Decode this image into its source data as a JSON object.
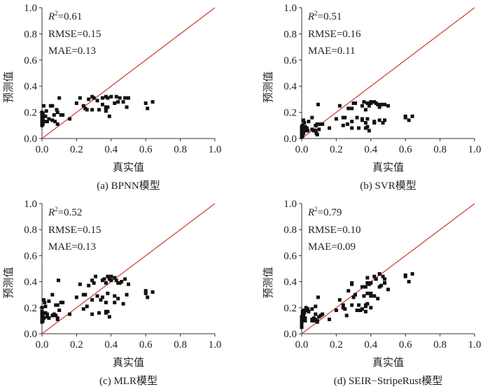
{
  "chart_data": [
    {
      "type": "scatter",
      "caption": "(a) BPNN模型",
      "xlabel": "真实值",
      "ylabel": "预测值",
      "xlim": [
        0,
        1.0
      ],
      "ylim": [
        0,
        1.0
      ],
      "xticks": [
        "0.0",
        "0.2",
        "0.4",
        "0.6",
        "0.8",
        "1.0"
      ],
      "yticks": [
        "0.0",
        "0.2",
        "0.4",
        "0.6",
        "0.8",
        "1.0"
      ],
      "reference_line": "y=x",
      "stats": {
        "r2_label": "R",
        "r2_value": "=0.61",
        "rmse": "RMSE=0.15",
        "mae": "MAE=0.13"
      },
      "points": [
        [
          0.0,
          0.1
        ],
        [
          0.0,
          0.12
        ],
        [
          0.0,
          0.14
        ],
        [
          0.0,
          0.16
        ],
        [
          0.0,
          0.18
        ],
        [
          0.0,
          0.2
        ],
        [
          0.005,
          0.11
        ],
        [
          0.005,
          0.15
        ],
        [
          0.005,
          0.19
        ],
        [
          0.01,
          0.13
        ],
        [
          0.01,
          0.17
        ],
        [
          0.01,
          0.25
        ],
        [
          0.05,
          0.25
        ],
        [
          0.06,
          0.25
        ],
        [
          0.025,
          0.21
        ],
        [
          0.03,
          0.13
        ],
        [
          0.02,
          0.17
        ],
        [
          0.04,
          0.15
        ],
        [
          0.07,
          0.18
        ],
        [
          0.06,
          0.14
        ],
        [
          0.085,
          0.22
        ],
        [
          0.09,
          0.2
        ],
        [
          0.075,
          0.13
        ],
        [
          0.09,
          0.11
        ],
        [
          0.11,
          0.18
        ],
        [
          0.12,
          0.18
        ],
        [
          0.1,
          0.31
        ],
        [
          0.16,
          0.15
        ],
        [
          0.2,
          0.27
        ],
        [
          0.22,
          0.31
        ],
        [
          0.24,
          0.25
        ],
        [
          0.25,
          0.23
        ],
        [
          0.27,
          0.3
        ],
        [
          0.26,
          0.22
        ],
        [
          0.29,
          0.22
        ],
        [
          0.29,
          0.32
        ],
        [
          0.3,
          0.31
        ],
        [
          0.32,
          0.29
        ],
        [
          0.33,
          0.22
        ],
        [
          0.35,
          0.26
        ],
        [
          0.35,
          0.31
        ],
        [
          0.37,
          0.32
        ],
        [
          0.38,
          0.31
        ],
        [
          0.37,
          0.24
        ],
        [
          0.37,
          0.23
        ],
        [
          0.38,
          0.24
        ],
        [
          0.37,
          0.21
        ],
        [
          0.39,
          0.17
        ],
        [
          0.4,
          0.32
        ],
        [
          0.42,
          0.27
        ],
        [
          0.43,
          0.32
        ],
        [
          0.44,
          0.28
        ],
        [
          0.45,
          0.31
        ],
        [
          0.47,
          0.28
        ],
        [
          0.48,
          0.31
        ],
        [
          0.49,
          0.24
        ],
        [
          0.5,
          0.31
        ],
        [
          0.6,
          0.27
        ],
        [
          0.61,
          0.23
        ],
        [
          0.64,
          0.28
        ]
      ]
    },
    {
      "type": "scatter",
      "caption": "(b) SVR模型",
      "xlabel": "真实值",
      "ylabel": "预测值",
      "xlim": [
        0,
        1.0
      ],
      "ylim": [
        0,
        1.0
      ],
      "xticks": [
        "0.0",
        "0.2",
        "0.4",
        "0.6",
        "0.8",
        "1.0"
      ],
      "yticks": [
        "0.0",
        "0.2",
        "0.4",
        "0.6",
        "0.8",
        "1.0"
      ],
      "reference_line": "y=x",
      "stats": {
        "r2_label": "R",
        "r2_value": "=0.51",
        "rmse": "RMSE=0.16",
        "mae": "MAE=0.11"
      },
      "points": [
        [
          0.0,
          0.01
        ],
        [
          0.0,
          0.03
        ],
        [
          0.0,
          0.05
        ],
        [
          0.0,
          0.07
        ],
        [
          0.0,
          0.09
        ],
        [
          0.005,
          0.02
        ],
        [
          0.005,
          0.06
        ],
        [
          0.005,
          0.1
        ],
        [
          0.01,
          0.04
        ],
        [
          0.01,
          0.08
        ],
        [
          0.01,
          0.14
        ],
        [
          0.015,
          0.12
        ],
        [
          0.02,
          0.09
        ],
        [
          0.025,
          0.06
        ],
        [
          0.03,
          0.08
        ],
        [
          0.035,
          0.06
        ],
        [
          0.04,
          0.13
        ],
        [
          0.06,
          0.16
        ],
        [
          0.06,
          0.07
        ],
        [
          0.07,
          0.06
        ],
        [
          0.08,
          0.1
        ],
        [
          0.08,
          0.06
        ],
        [
          0.085,
          0.04
        ],
        [
          0.09,
          0.03
        ],
        [
          0.09,
          0.11
        ],
        [
          0.1,
          0.07
        ],
        [
          0.11,
          0.11
        ],
        [
          0.12,
          0.11
        ],
        [
          0.095,
          0.26
        ],
        [
          0.16,
          0.08
        ],
        [
          0.2,
          0.15
        ],
        [
          0.22,
          0.25
        ],
        [
          0.24,
          0.16
        ],
        [
          0.24,
          0.1
        ],
        [
          0.25,
          0.16
        ],
        [
          0.265,
          0.11
        ],
        [
          0.27,
          0.23
        ],
        [
          0.29,
          0.23
        ],
        [
          0.29,
          0.13
        ],
        [
          0.29,
          0.08
        ],
        [
          0.3,
          0.27
        ],
        [
          0.31,
          0.27
        ],
        [
          0.32,
          0.16
        ],
        [
          0.33,
          0.08
        ],
        [
          0.35,
          0.15
        ],
        [
          0.35,
          0.14
        ],
        [
          0.35,
          0.25
        ],
        [
          0.36,
          0.28
        ],
        [
          0.37,
          0.22
        ],
        [
          0.37,
          0.12
        ],
        [
          0.37,
          0.08
        ],
        [
          0.38,
          0.27
        ],
        [
          0.38,
          0.09
        ],
        [
          0.38,
          0.15
        ],
        [
          0.39,
          0.25
        ],
        [
          0.4,
          0.27
        ],
        [
          0.4,
          0.28
        ],
        [
          0.39,
          0.06
        ],
        [
          0.42,
          0.28
        ],
        [
          0.42,
          0.13
        ],
        [
          0.42,
          0.12
        ],
        [
          0.43,
          0.27
        ],
        [
          0.44,
          0.26
        ],
        [
          0.45,
          0.14
        ],
        [
          0.45,
          0.24
        ],
        [
          0.46,
          0.26
        ],
        [
          0.47,
          0.12
        ],
        [
          0.48,
          0.26
        ],
        [
          0.48,
          0.14
        ],
        [
          0.5,
          0.25
        ],
        [
          0.6,
          0.17
        ],
        [
          0.6,
          0.16
        ],
        [
          0.62,
          0.14
        ],
        [
          0.64,
          0.17
        ]
      ]
    },
    {
      "type": "scatter",
      "caption": "(c) MLR模型",
      "xlabel": "真实值",
      "ylabel": "预测值",
      "xlim": [
        0,
        1.0
      ],
      "ylim": [
        0,
        1.0
      ],
      "xticks": [
        "0.0",
        "0.2",
        "0.4",
        "0.6",
        "0.8",
        "1.0"
      ],
      "yticks": [
        "0.0",
        "0.2",
        "0.4",
        "0.6",
        "0.8",
        "1.0"
      ],
      "reference_line": "y=x",
      "stats": {
        "r2_label": "R",
        "r2_value": "=0.52",
        "rmse": "RMSE=0.15",
        "mae": "MAE=0.13"
      },
      "points": [
        [
          0.0,
          0.09
        ],
        [
          0.0,
          0.11
        ],
        [
          0.0,
          0.13
        ],
        [
          0.0,
          0.15
        ],
        [
          0.0,
          0.17
        ],
        [
          0.0,
          0.2
        ],
        [
          0.005,
          0.1
        ],
        [
          0.005,
          0.14
        ],
        [
          0.01,
          0.12
        ],
        [
          0.01,
          0.26
        ],
        [
          0.015,
          0.24
        ],
        [
          0.02,
          0.21
        ],
        [
          0.02,
          0.16
        ],
        [
          0.03,
          0.15
        ],
        [
          0.03,
          0.13
        ],
        [
          0.04,
          0.12
        ],
        [
          0.04,
          0.25
        ],
        [
          0.06,
          0.3
        ],
        [
          0.06,
          0.14
        ],
        [
          0.07,
          0.15
        ],
        [
          0.08,
          0.14
        ],
        [
          0.08,
          0.22
        ],
        [
          0.09,
          0.22
        ],
        [
          0.09,
          0.12
        ],
        [
          0.09,
          0.11
        ],
        [
          0.1,
          0.18
        ],
        [
          0.11,
          0.24
        ],
        [
          0.12,
          0.24
        ],
        [
          0.095,
          0.41
        ],
        [
          0.16,
          0.15
        ],
        [
          0.2,
          0.28
        ],
        [
          0.22,
          0.38
        ],
        [
          0.24,
          0.3
        ],
        [
          0.24,
          0.19
        ],
        [
          0.25,
          0.3
        ],
        [
          0.26,
          0.21
        ],
        [
          0.27,
          0.37
        ],
        [
          0.29,
          0.41
        ],
        [
          0.29,
          0.26
        ],
        [
          0.29,
          0.15
        ],
        [
          0.3,
          0.39
        ],
        [
          0.31,
          0.44
        ],
        [
          0.32,
          0.29
        ],
        [
          0.33,
          0.16
        ],
        [
          0.34,
          0.26
        ],
        [
          0.35,
          0.41
        ],
        [
          0.35,
          0.28
        ],
        [
          0.36,
          0.42
        ],
        [
          0.37,
          0.39
        ],
        [
          0.37,
          0.24
        ],
        [
          0.37,
          0.17
        ],
        [
          0.37,
          0.16
        ],
        [
          0.38,
          0.44
        ],
        [
          0.38,
          0.31
        ],
        [
          0.38,
          0.17
        ],
        [
          0.39,
          0.42
        ],
        [
          0.4,
          0.44
        ],
        [
          0.4,
          0.41
        ],
        [
          0.39,
          0.13
        ],
        [
          0.42,
          0.43
        ],
        [
          0.42,
          0.29
        ],
        [
          0.42,
          0.24
        ],
        [
          0.43,
          0.41
        ],
        [
          0.44,
          0.39
        ],
        [
          0.44,
          0.27
        ],
        [
          0.45,
          0.39
        ],
        [
          0.46,
          0.4
        ],
        [
          0.47,
          0.23
        ],
        [
          0.48,
          0.42
        ],
        [
          0.49,
          0.3
        ],
        [
          0.5,
          0.38
        ],
        [
          0.6,
          0.33
        ],
        [
          0.6,
          0.31
        ],
        [
          0.61,
          0.28
        ],
        [
          0.64,
          0.32
        ]
      ]
    },
    {
      "type": "scatter",
      "caption": "(d) SEIR−StripeRust模型",
      "xlabel": "真实值",
      "ylabel": "预测值",
      "xlim": [
        0,
        1.0
      ],
      "ylim": [
        0,
        1.0
      ],
      "xticks": [
        "0.0",
        "0.2",
        "0.4",
        "0.6",
        "0.8",
        "1.0"
      ],
      "yticks": [
        "0.0",
        "0.2",
        "0.4",
        "0.6",
        "0.8",
        "1.0"
      ],
      "reference_line": "y=x",
      "stats": {
        "r2_label": "R",
        "r2_value": "=0.79",
        "rmse": "RMSE=0.10",
        "mae": "MAE=0.09"
      },
      "points": [
        [
          0.0,
          0.05
        ],
        [
          0.0,
          0.07
        ],
        [
          0.0,
          0.09
        ],
        [
          0.0,
          0.11
        ],
        [
          0.0,
          0.13
        ],
        [
          0.005,
          0.15
        ],
        [
          0.005,
          0.17
        ],
        [
          0.01,
          0.18
        ],
        [
          0.01,
          0.14
        ],
        [
          0.015,
          0.16
        ],
        [
          0.02,
          0.12
        ],
        [
          0.02,
          0.1
        ],
        [
          0.025,
          0.2
        ],
        [
          0.03,
          0.18
        ],
        [
          0.035,
          0.19
        ],
        [
          0.04,
          0.17
        ],
        [
          0.06,
          0.19
        ],
        [
          0.06,
          0.11
        ],
        [
          0.06,
          0.1
        ],
        [
          0.07,
          0.12
        ],
        [
          0.07,
          0.1
        ],
        [
          0.08,
          0.11
        ],
        [
          0.08,
          0.21
        ],
        [
          0.08,
          0.15
        ],
        [
          0.09,
          0.1
        ],
        [
          0.09,
          0.09
        ],
        [
          0.1,
          0.13
        ],
        [
          0.11,
          0.14
        ],
        [
          0.12,
          0.15
        ],
        [
          0.095,
          0.28
        ],
        [
          0.16,
          0.11
        ],
        [
          0.2,
          0.18
        ],
        [
          0.22,
          0.26
        ],
        [
          0.24,
          0.22
        ],
        [
          0.24,
          0.2
        ],
        [
          0.25,
          0.19
        ],
        [
          0.26,
          0.14
        ],
        [
          0.27,
          0.33
        ],
        [
          0.29,
          0.39
        ],
        [
          0.29,
          0.38
        ],
        [
          0.29,
          0.22
        ],
        [
          0.3,
          0.28
        ],
        [
          0.31,
          0.3
        ],
        [
          0.32,
          0.18
        ],
        [
          0.33,
          0.22
        ],
        [
          0.34,
          0.18
        ],
        [
          0.35,
          0.19
        ],
        [
          0.35,
          0.36
        ],
        [
          0.36,
          0.29
        ],
        [
          0.37,
          0.36
        ],
        [
          0.37,
          0.21
        ],
        [
          0.37,
          0.22
        ],
        [
          0.37,
          0.17
        ],
        [
          0.38,
          0.43
        ],
        [
          0.38,
          0.39
        ],
        [
          0.38,
          0.31
        ],
        [
          0.38,
          0.23
        ],
        [
          0.39,
          0.38
        ],
        [
          0.4,
          0.31
        ],
        [
          0.4,
          0.29
        ],
        [
          0.4,
          0.2
        ],
        [
          0.4,
          0.39
        ],
        [
          0.42,
          0.44
        ],
        [
          0.42,
          0.29
        ],
        [
          0.43,
          0.42
        ],
        [
          0.44,
          0.27
        ],
        [
          0.45,
          0.46
        ],
        [
          0.45,
          0.36
        ],
        [
          0.46,
          0.37
        ],
        [
          0.47,
          0.44
        ],
        [
          0.48,
          0.39
        ],
        [
          0.48,
          0.42
        ],
        [
          0.5,
          0.34
        ],
        [
          0.6,
          0.45
        ],
        [
          0.6,
          0.44
        ],
        [
          0.62,
          0.4
        ],
        [
          0.64,
          0.46
        ]
      ]
    }
  ]
}
